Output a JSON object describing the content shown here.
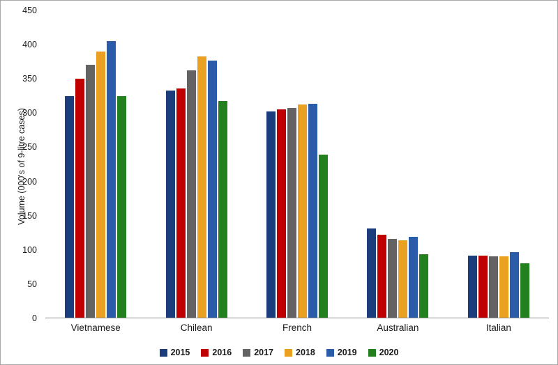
{
  "chart_data": {
    "type": "bar",
    "title": "",
    "xlabel": "",
    "ylabel": "Volume (000's of 9-litre cases)",
    "ylim": [
      0,
      450
    ],
    "yticks": [
      0,
      50,
      100,
      150,
      200,
      250,
      300,
      350,
      400,
      450
    ],
    "grid": false,
    "legend_position": "bottom",
    "categories": [
      "Vietnamese",
      "Chilean",
      "French",
      "Australian",
      "Italian"
    ],
    "series": [
      {
        "name": "2015",
        "color": "#1c3d7c",
        "values": [
          325,
          333,
          302,
          131,
          91
        ]
      },
      {
        "name": "2016",
        "color": "#c00000",
        "values": [
          350,
          336,
          305,
          121,
          91
        ]
      },
      {
        "name": "2017",
        "color": "#636363",
        "values": [
          370,
          362,
          307,
          115,
          90
        ]
      },
      {
        "name": "2018",
        "color": "#eaa121",
        "values": [
          390,
          383,
          312,
          113,
          90
        ]
      },
      {
        "name": "2019",
        "color": "#2a5caa",
        "values": [
          405,
          377,
          313,
          118,
          96
        ]
      },
      {
        "name": "2020",
        "color": "#23801f",
        "values": [
          325,
          317,
          239,
          93,
          80
        ]
      }
    ]
  }
}
